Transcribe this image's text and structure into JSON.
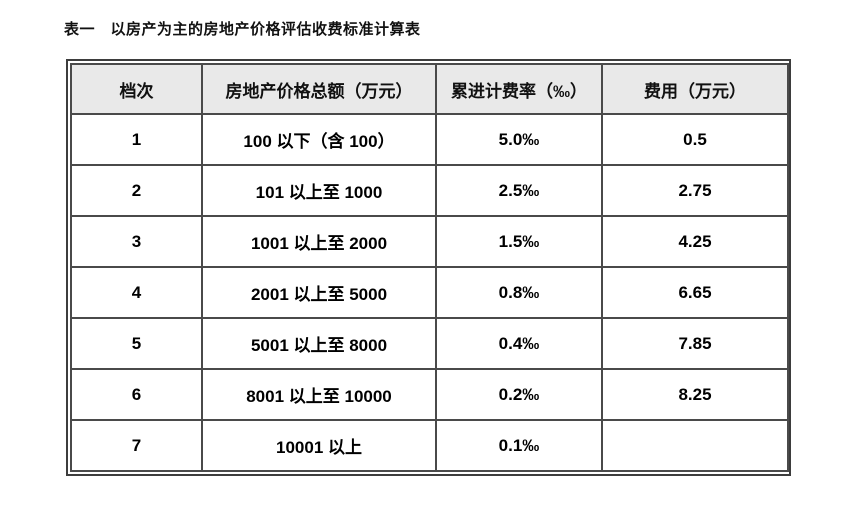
{
  "page": {
    "title": "表一　以房产为主的房地产价格评估收费标准计算表"
  },
  "colors": {
    "header_bg": "#e9e9e9",
    "border": "#4a4a4a",
    "text": "#000000"
  },
  "table": {
    "headers": {
      "tier": "档次",
      "total_price": "房地产价格总额（万元）",
      "rate": "累进计费率（‰）",
      "fee": "费用（万元）"
    },
    "rows": [
      [
        "1",
        "100 以下（含 100）",
        "5.0‰",
        "0.5"
      ],
      [
        "2",
        "101 以上至 1000",
        "2.5‰",
        "2.75"
      ],
      [
        "3",
        "1001 以上至 2000",
        "1.5‰",
        "4.25"
      ],
      [
        "4",
        "2001 以上至 5000",
        "0.8‰",
        "6.65"
      ],
      [
        "5",
        "5001 以上至 8000",
        "0.4‰",
        "7.85"
      ],
      [
        "6",
        "8001 以上至 10000",
        "0.2‰",
        "8.25"
      ],
      [
        "7",
        "10001 以上",
        "0.1‰",
        ""
      ]
    ]
  }
}
